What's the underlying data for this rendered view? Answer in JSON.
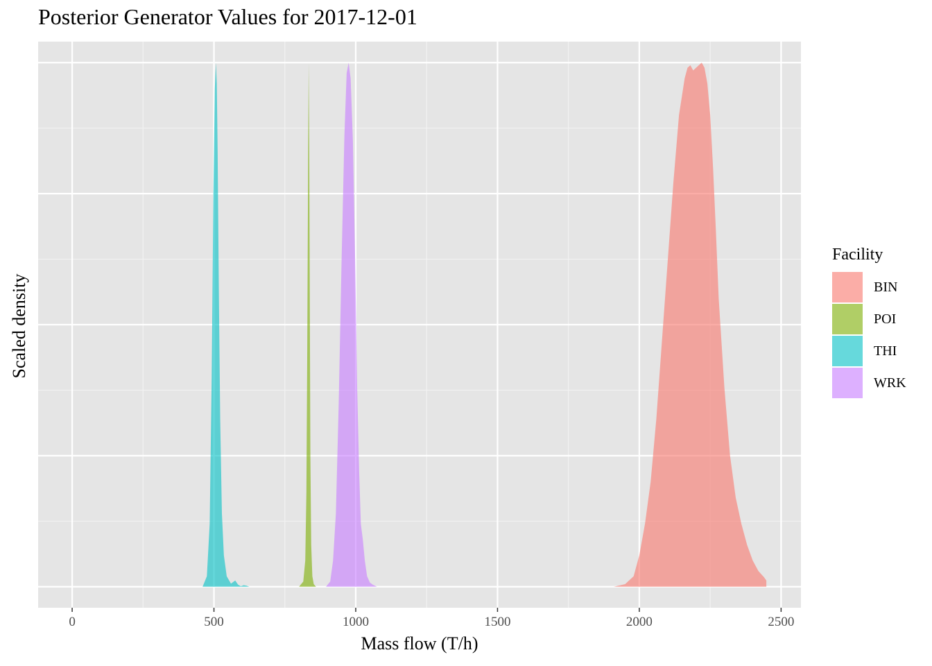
{
  "chart_data": {
    "type": "area",
    "title": "Posterior Generator Values for 2017-12-01",
    "xlabel": "Mass flow (T/h)",
    "ylabel": "Scaled density",
    "xlim": [
      -120,
      2570
    ],
    "ylim": [
      -0.04,
      1.04
    ],
    "x_ticks": [
      0,
      500,
      1000,
      1500,
      2000,
      2500
    ],
    "x_tick_labels": [
      "0",
      "500",
      "1000",
      "1500",
      "2000",
      "2500"
    ],
    "grid": true,
    "legend": {
      "title": "Facility",
      "position": "right"
    },
    "series": [
      {
        "name": "BIN",
        "color": "#F8766D",
        "x": [
          1910,
          1950,
          1980,
          2000,
          2020,
          2040,
          2060,
          2080,
          2100,
          2120,
          2140,
          2160,
          2170,
          2180,
          2190,
          2200,
          2210,
          2220,
          2230,
          2240,
          2250,
          2260,
          2270,
          2280,
          2300,
          2320,
          2340,
          2360,
          2380,
          2400,
          2420,
          2440,
          2448,
          2448
        ],
        "y": [
          0,
          0.005,
          0.02,
          0.06,
          0.12,
          0.2,
          0.32,
          0.47,
          0.62,
          0.77,
          0.9,
          0.97,
          0.99,
          0.995,
          0.985,
          0.99,
          0.995,
          1.0,
          0.99,
          0.96,
          0.9,
          0.8,
          0.68,
          0.55,
          0.38,
          0.25,
          0.17,
          0.12,
          0.08,
          0.05,
          0.03,
          0.018,
          0.012,
          0
        ]
      },
      {
        "name": "POI",
        "color": "#7CAE00",
        "x": [
          800,
          815,
          822,
          826,
          829,
          832,
          834,
          836,
          838,
          840,
          843,
          847,
          852,
          860
        ],
        "y": [
          0,
          0.01,
          0.05,
          0.18,
          0.45,
          0.8,
          1.0,
          0.85,
          0.55,
          0.25,
          0.08,
          0.02,
          0.005,
          0
        ]
      },
      {
        "name": "THI",
        "color": "#00BFC4",
        "x": [
          460,
          475,
          485,
          492,
          498,
          503,
          507,
          510,
          513,
          517,
          522,
          528,
          535,
          545,
          560,
          575,
          585,
          595,
          605,
          615,
          625
        ],
        "y": [
          0,
          0.02,
          0.12,
          0.4,
          0.75,
          0.95,
          1.0,
          0.96,
          0.83,
          0.58,
          0.32,
          0.14,
          0.06,
          0.02,
          0.006,
          0.012,
          0.004,
          0.001,
          0.003,
          0.002,
          0
        ]
      },
      {
        "name": "WRK",
        "color": "#C77CFF",
        "x": [
          895,
          910,
          920,
          930,
          940,
          950,
          960,
          968,
          975,
          982,
          990,
          998,
          1005,
          1012,
          1018,
          1025,
          1032,
          1040,
          1050,
          1060,
          1075
        ],
        "y": [
          0,
          0.01,
          0.05,
          0.14,
          0.35,
          0.62,
          0.86,
          0.98,
          1.0,
          0.97,
          0.85,
          0.62,
          0.38,
          0.22,
          0.12,
          0.09,
          0.05,
          0.02,
          0.008,
          0.004,
          0
        ]
      }
    ]
  }
}
